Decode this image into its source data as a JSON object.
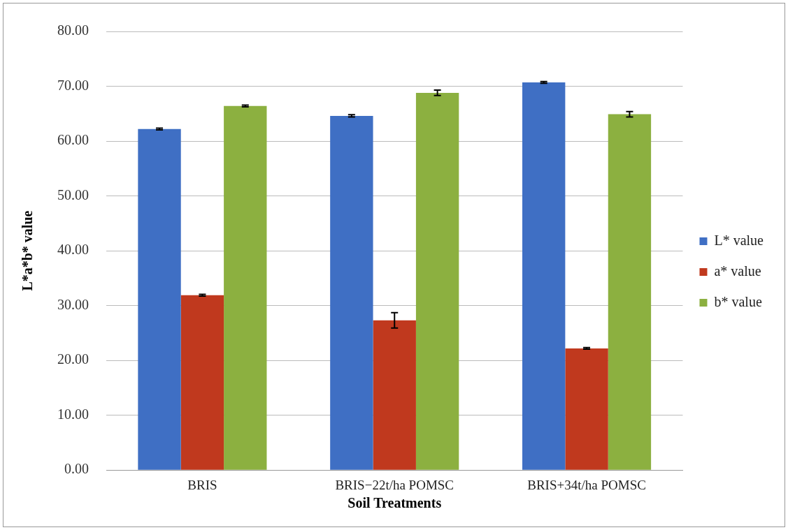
{
  "chart_data": {
    "type": "bar",
    "xlabel": "Soil Treatments",
    "ylabel": "L*a*b* value",
    "categories": [
      "BRIS",
      "BRIS−22t/ha POMSC",
      "BRIS+34t/ha POMSC"
    ],
    "series": [
      {
        "name": "L* value",
        "color": "#3f6fc4",
        "values": [
          62.2,
          64.6,
          70.7
        ],
        "errors": [
          0.15,
          0.2,
          0.15
        ]
      },
      {
        "name": "a* value",
        "color": "#c0391e",
        "values": [
          31.9,
          27.3,
          22.2
        ],
        "errors": [
          0.15,
          1.4,
          0.15
        ]
      },
      {
        "name": "b* value",
        "color": "#8cb040",
        "values": [
          66.4,
          68.8,
          64.9
        ],
        "errors": [
          0.15,
          0.5,
          0.5
        ]
      }
    ],
    "ylim": [
      0,
      80
    ],
    "yticks": [
      {
        "value": 0,
        "label": "0.00"
      },
      {
        "value": 10,
        "label": "10.00"
      },
      {
        "value": 20,
        "label": "20.00"
      },
      {
        "value": 30,
        "label": "30.00"
      },
      {
        "value": 40,
        "label": "40.00"
      },
      {
        "value": 50,
        "label": "50.00"
      },
      {
        "value": 60,
        "label": "60.00"
      },
      {
        "value": 70,
        "label": "70.00"
      },
      {
        "value": 80,
        "label": "80.00"
      }
    ],
    "grid": "y",
    "legend": "right"
  }
}
